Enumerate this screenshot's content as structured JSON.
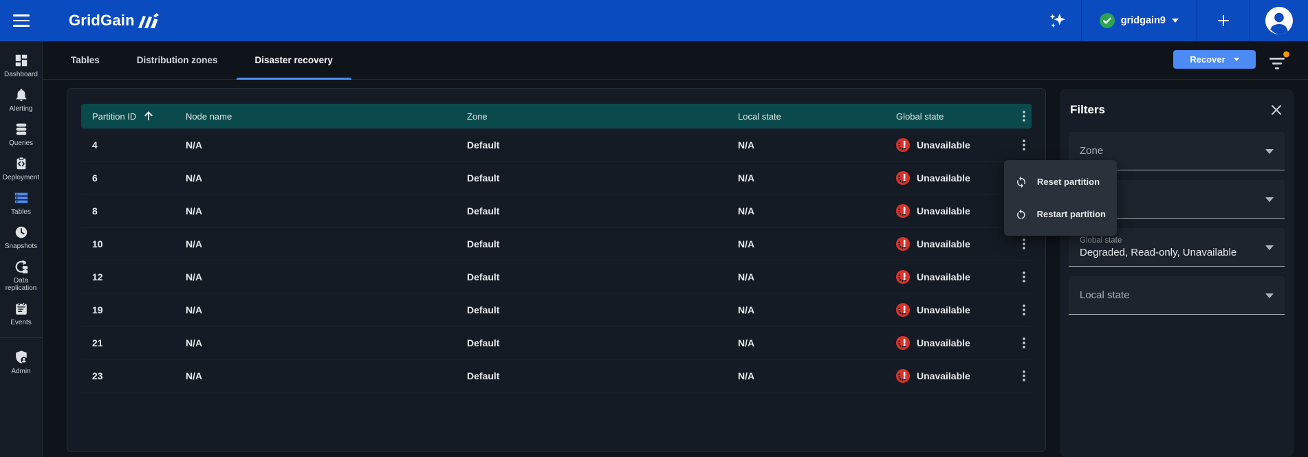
{
  "topbar": {
    "logo_text": "GridGain",
    "cluster_name": "gridgain9"
  },
  "sidebar": {
    "items": [
      {
        "label": "Dashboard",
        "icon": "dashboard"
      },
      {
        "label": "Alerting",
        "icon": "alerting"
      },
      {
        "label": "Queries",
        "icon": "queries"
      },
      {
        "label": "Deployment",
        "icon": "deployment"
      },
      {
        "label": "Tables",
        "icon": "tables",
        "active": true
      },
      {
        "label": "Snapshots",
        "icon": "snapshots"
      },
      {
        "label": "Data replication",
        "icon": "data-replication"
      },
      {
        "label": "Events",
        "icon": "events"
      },
      {
        "divider": true
      },
      {
        "label": "Admin",
        "icon": "admin"
      }
    ]
  },
  "tabs": [
    {
      "label": "Tables"
    },
    {
      "label": "Distribution zones"
    },
    {
      "label": "Disaster recovery",
      "active": true
    }
  ],
  "toolbar": {
    "recover_label": "Recover"
  },
  "table": {
    "columns": {
      "partition_id": "Partition ID",
      "node_name": "Node name",
      "zone": "Zone",
      "local_state": "Local state",
      "global_state": "Global state"
    },
    "rows": [
      {
        "partition_id": "4",
        "node_name": "N/A",
        "zone": "Default",
        "local_state": "N/A",
        "global_state": "Unavailable"
      },
      {
        "partition_id": "6",
        "node_name": "N/A",
        "zone": "Default",
        "local_state": "N/A",
        "global_state": "Unavailable"
      },
      {
        "partition_id": "8",
        "node_name": "N/A",
        "zone": "Default",
        "local_state": "N/A",
        "global_state": "Unavailable"
      },
      {
        "partition_id": "10",
        "node_name": "N/A",
        "zone": "Default",
        "local_state": "N/A",
        "global_state": "Unavailable"
      },
      {
        "partition_id": "12",
        "node_name": "N/A",
        "zone": "Default",
        "local_state": "N/A",
        "global_state": "Unavailable"
      },
      {
        "partition_id": "19",
        "node_name": "N/A",
        "zone": "Default",
        "local_state": "N/A",
        "global_state": "Unavailable"
      },
      {
        "partition_id": "21",
        "node_name": "N/A",
        "zone": "Default",
        "local_state": "N/A",
        "global_state": "Unavailable"
      },
      {
        "partition_id": "23",
        "node_name": "N/A",
        "zone": "Default",
        "local_state": "N/A",
        "global_state": "Unavailable"
      }
    ]
  },
  "context_menu": {
    "items": [
      {
        "label": "Reset partition",
        "icon": "reset"
      },
      {
        "label": "Restart partition",
        "icon": "restart"
      }
    ]
  },
  "filters": {
    "title": "Filters",
    "fields": [
      {
        "label": "Zone",
        "value": ""
      },
      {
        "label": "",
        "value": ""
      },
      {
        "label": "Global state",
        "value": "Degraded, Read-only, Unavailable"
      },
      {
        "label": "Local state",
        "value": ""
      }
    ]
  },
  "colors": {
    "topbar": "#0a4cc0",
    "accent": "#4d8df6",
    "table_header": "#0b4a4c",
    "status_unavailable": "#d4342c",
    "cluster_ok": "#2da353",
    "notification_dot": "#ff9800"
  }
}
